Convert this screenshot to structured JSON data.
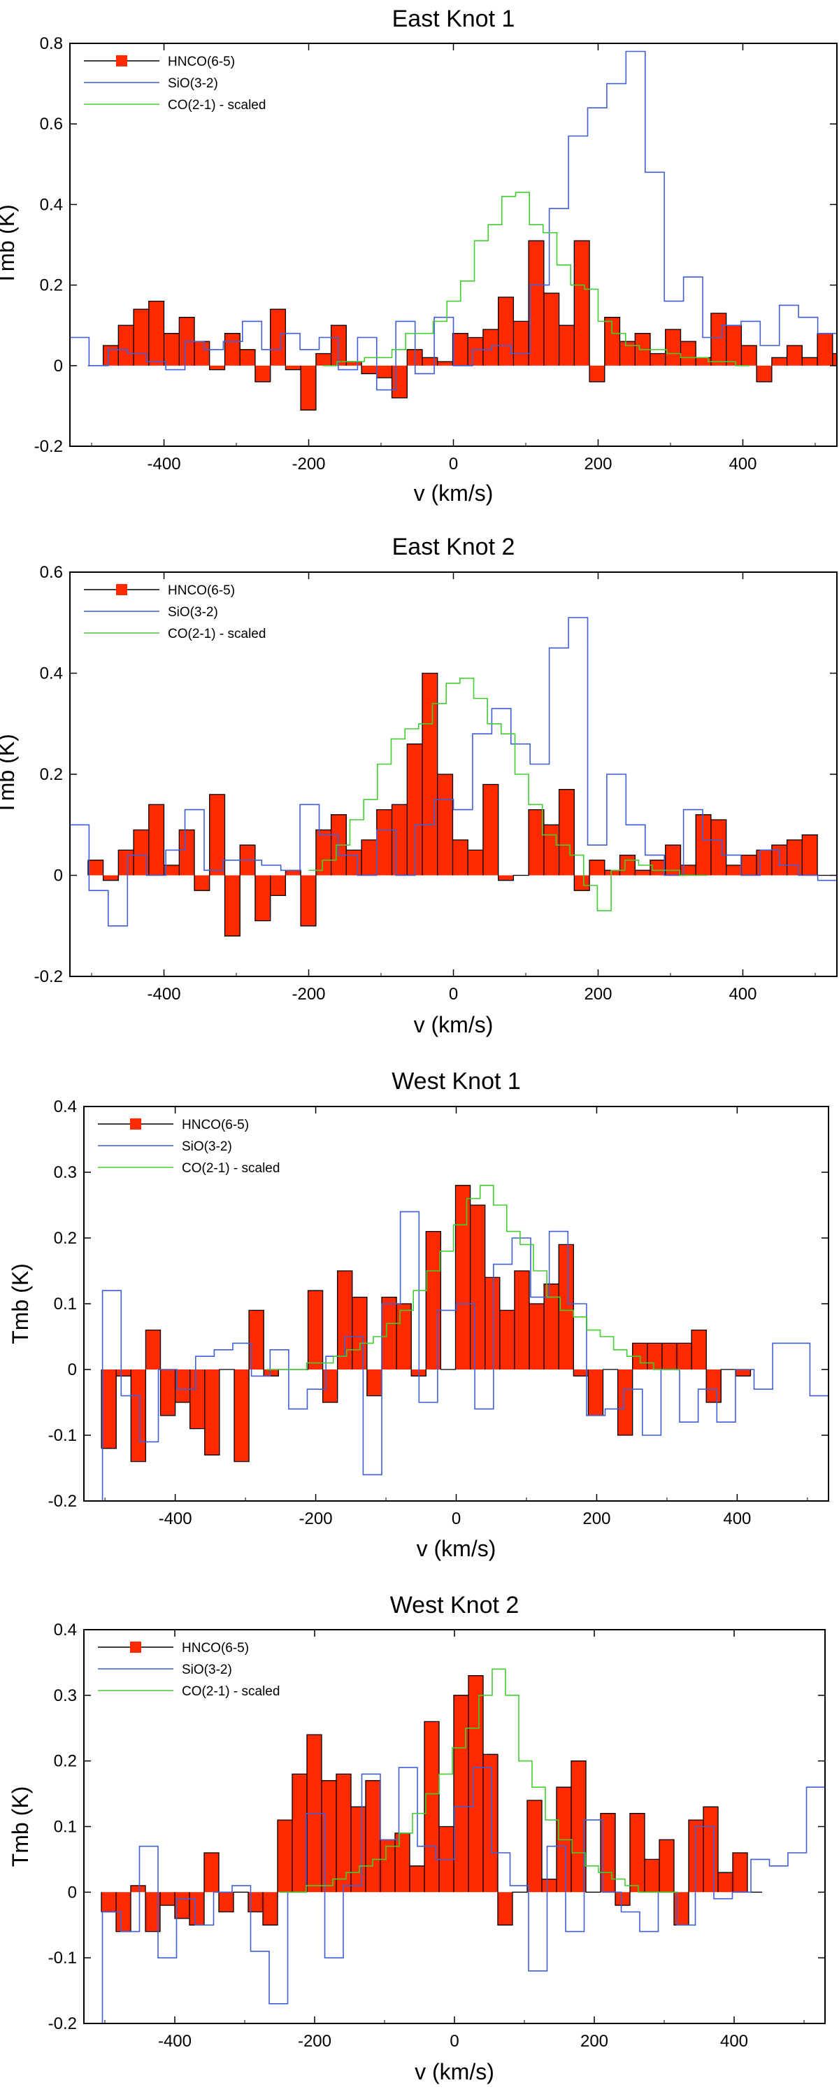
{
  "legend": {
    "hnco": "HNCO(6-5)",
    "sio": "SiO(3-2)",
    "co": "CO(2-1) - scaled"
  },
  "colors": {
    "hnco_fill": "#ff2a00",
    "hnco_line": "#000000",
    "sio": "#3f5fd6",
    "co": "#44cc33",
    "hnco_marker": "#ff2a00"
  },
  "chart_data": [
    {
      "type": "line",
      "title": "East Knot 1",
      "xlabel": "v (km/s)",
      "ylabel": "Tmb (K)",
      "xlim": [
        -530,
        530
      ],
      "ylim": [
        -0.2,
        0.8
      ],
      "xticks": [
        -400,
        -200,
        0,
        200,
        400
      ],
      "yticks": [
        -0.2,
        0,
        0.2,
        0.4,
        0.6,
        0.8
      ],
      "ytick_labels": [
        "-0.2",
        "0",
        "0.2",
        "0.4",
        "0.6",
        "0.8"
      ],
      "legend_position": "top-left",
      "series": [
        {
          "name": "HNCO(6-5)",
          "style": "filled-step",
          "bin_width": 21,
          "x_start": -505,
          "values": [
            0.0,
            0.05,
            0.1,
            0.14,
            0.16,
            0.08,
            0.12,
            0.06,
            -0.01,
            0.08,
            0.04,
            -0.04,
            0.14,
            -0.01,
            -0.11,
            0.03,
            0.1,
            0.01,
            -0.02,
            -0.03,
            -0.08,
            0.04,
            0.02,
            0.01,
            0.08,
            0.07,
            0.09,
            0.17,
            0.11,
            0.31,
            0.18,
            0.1,
            0.31,
            -0.04,
            0.12,
            0.06,
            0.08,
            0.03,
            0.09,
            0.06,
            0.02,
            0.13,
            0.1,
            0.05,
            -0.04,
            0.02,
            0.05,
            0.02,
            0.08,
            0.03,
            0.0,
            0.03,
            0.01,
            0.04,
            0.0,
            0.07,
            0.0
          ]
        },
        {
          "name": "SiO(3-2)",
          "style": "step",
          "bin_width": 26.5,
          "x_start": -530,
          "values": [
            0.07,
            0.0,
            0.04,
            0.03,
            0.01,
            -0.01,
            0.06,
            0.04,
            0.06,
            0.11,
            0.04,
            0.08,
            0.04,
            0.07,
            -0.01,
            0.07,
            -0.06,
            0.11,
            -0.02,
            0.12,
            0.0,
            0.04,
            0.05,
            0.03,
            0.2,
            0.39,
            0.57,
            0.64,
            0.7,
            0.78,
            0.48,
            0.16,
            0.22,
            0.07,
            0.1,
            0.11,
            0.05,
            0.15,
            0.12,
            0.08,
            0.0,
            -0.07,
            0.0,
            0.04,
            0.09,
            0.05,
            0.0,
            -0.08,
            -0.09,
            -0.05,
            -0.03,
            -0.03,
            0.04,
            0.0,
            0.12,
            0.08
          ]
        },
        {
          "name": "CO(2-1) - scaled",
          "style": "step",
          "bin_width": 19,
          "x_start": -180,
          "values": [
            0.0,
            0.01,
            0.01,
            0.02,
            0.02,
            0.04,
            0.08,
            0.08,
            0.11,
            0.16,
            0.21,
            0.31,
            0.35,
            0.42,
            0.43,
            0.35,
            0.33,
            0.25,
            0.2,
            0.19,
            0.11,
            0.08,
            0.05,
            0.04,
            0.04,
            0.03,
            0.02,
            0.02,
            0.01,
            0.01,
            0.0
          ]
        }
      ]
    },
    {
      "type": "line",
      "title": "East Knot 2",
      "xlabel": "v (km/s)",
      "ylabel": "Tmb (K)",
      "xlim": [
        -530,
        530
      ],
      "ylim": [
        -0.2,
        0.6
      ],
      "xticks": [
        -400,
        -200,
        0,
        200,
        400
      ],
      "yticks": [
        -0.2,
        0,
        0.2,
        0.4,
        0.6
      ],
      "ytick_labels": [
        "-0.2",
        "0",
        "0.2",
        "0.4",
        "0.6"
      ],
      "legend_position": "top-left",
      "series": [
        {
          "name": "HNCO(6-5)",
          "style": "filled-step",
          "bin_width": 21,
          "x_start": -505,
          "values": [
            0.03,
            -0.01,
            0.05,
            0.09,
            0.14,
            0.02,
            0.09,
            -0.03,
            0.16,
            -0.12,
            0.06,
            -0.09,
            -0.04,
            0.01,
            -0.1,
            0.09,
            0.12,
            0.05,
            0.07,
            0.13,
            0.14,
            0.26,
            0.4,
            0.2,
            0.07,
            0.05,
            0.18,
            -0.01,
            0.0,
            0.13,
            0.1,
            0.17,
            -0.03,
            0.03,
            0.01,
            0.04,
            0.01,
            0.03,
            0.06,
            0.02,
            0.12,
            0.11,
            0.02,
            0.04,
            0.05,
            0.06,
            0.07,
            0.08,
            0.0
          ]
        },
        {
          "name": "SiO(3-2)",
          "style": "step",
          "bin_width": 26.5,
          "x_start": -530,
          "values": [
            0.1,
            -0.03,
            -0.1,
            0.04,
            0.0,
            0.05,
            0.13,
            0.01,
            0.03,
            0.03,
            0.02,
            0.01,
            0.14,
            0.08,
            0.04,
            0.0,
            0.09,
            0.0,
            0.1,
            0.15,
            0.13,
            0.28,
            0.33,
            0.26,
            0.22,
            0.45,
            0.51,
            0.06,
            0.2,
            0.1,
            0.04,
            0.0,
            0.13,
            0.07,
            0.04,
            0.0,
            0.05,
            0.02,
            0.0,
            -0.01,
            -0.03,
            -0.05,
            -0.08,
            0.05,
            0.11,
            0.01,
            0.02,
            0.06,
            0.05,
            0.08,
            0.02,
            0.07
          ]
        },
        {
          "name": "CO(2-1) - scaled",
          "style": "step",
          "bin_width": 19,
          "x_start": -200,
          "values": [
            0.01,
            0.03,
            0.06,
            0.11,
            0.15,
            0.22,
            0.27,
            0.29,
            0.3,
            0.34,
            0.38,
            0.39,
            0.35,
            0.3,
            0.28,
            0.2,
            0.14,
            0.08,
            0.06,
            0.04,
            -0.02,
            -0.07,
            0.01,
            0.03,
            0.02,
            0.01,
            0.01,
            0.0,
            0.0
          ]
        }
      ]
    },
    {
      "type": "line",
      "title": "West Knot 1",
      "xlabel": "v (km/s)",
      "ylabel": "Tmb (K)",
      "xlim": [
        -530,
        530
      ],
      "ylim": [
        -0.2,
        0.4
      ],
      "xticks": [
        -400,
        -200,
        0,
        200,
        400
      ],
      "yticks": [
        -0.2,
        -0.1,
        0,
        0.1,
        0.2,
        0.3,
        0.4
      ],
      "ytick_labels": [
        "-0.2",
        "-0.1",
        "0",
        "0.1",
        "0.2",
        "0.3",
        "0.4"
      ],
      "legend_position": "top-left",
      "series": [
        {
          "name": "HNCO(6-5)",
          "style": "filled-step",
          "bin_width": 21,
          "x_start": -505,
          "values": [
            -0.12,
            -0.01,
            -0.14,
            0.06,
            -0.07,
            -0.05,
            -0.09,
            -0.13,
            0.0,
            -0.14,
            0.09,
            -0.01,
            0.0,
            0.0,
            0.12,
            -0.05,
            0.15,
            0.11,
            -0.04,
            0.11,
            0.1,
            -0.01,
            0.21,
            0.0,
            0.28,
            0.25,
            0.14,
            0.09,
            0.15,
            0.1,
            0.13,
            0.19,
            -0.01,
            -0.07,
            0.0,
            -0.1,
            0.04,
            0.04,
            0.04,
            0.04,
            0.06,
            -0.05,
            0.0,
            -0.01
          ]
        },
        {
          "name": "SiO(3-2)",
          "style": "step",
          "bin_width": 26.5,
          "x_start": -530,
          "values": [
            -0.2,
            0.12,
            -0.04,
            -0.11,
            0.0,
            -0.03,
            0.02,
            0.03,
            0.04,
            -0.01,
            0.03,
            -0.06,
            -0.03,
            0.02,
            0.05,
            -0.16,
            0.1,
            0.24,
            -0.05,
            0.09,
            0.1,
            -0.06,
            0.16,
            0.2,
            0.11,
            0.21,
            0.1,
            -0.07,
            -0.06,
            -0.03,
            -0.1,
            0.0,
            -0.08,
            -0.03,
            -0.08,
            0.0,
            -0.03,
            0.04,
            0.04,
            -0.04,
            0.03,
            -0.05,
            0.01,
            -0.01,
            0.0,
            -0.04,
            0.19,
            0.15
          ]
        },
        {
          "name": "CO(2-1) - scaled",
          "style": "step",
          "bin_width": 19,
          "x_start": -270,
          "values": [
            0.0,
            0.0,
            0.0,
            0.01,
            0.01,
            0.02,
            0.03,
            0.04,
            0.05,
            0.07,
            0.09,
            0.12,
            0.15,
            0.18,
            0.22,
            0.26,
            0.28,
            0.25,
            0.21,
            0.19,
            0.15,
            0.11,
            0.09,
            0.08,
            0.06,
            0.05,
            0.03,
            0.02,
            0.01,
            0.0,
            0.0
          ]
        }
      ]
    },
    {
      "type": "line",
      "title": "West Knot 2",
      "xlabel": "v (km/s)",
      "ylabel": "Tmb (K)",
      "xlim": [
        -530,
        530
      ],
      "ylim": [
        -0.2,
        0.4
      ],
      "xticks": [
        -400,
        -200,
        0,
        200,
        400
      ],
      "yticks": [
        -0.2,
        -0.1,
        0,
        0.1,
        0.2,
        0.3,
        0.4
      ],
      "ytick_labels": [
        "-0.2",
        "-0.1",
        "0",
        "0.1",
        "0.2",
        "0.3",
        "0.4"
      ],
      "legend_position": "top-left",
      "series": [
        {
          "name": "HNCO(6-5)",
          "style": "filled-step",
          "bin_width": 21,
          "x_start": -505,
          "values": [
            -0.03,
            -0.06,
            0.01,
            -0.06,
            -0.02,
            -0.04,
            -0.05,
            0.06,
            -0.03,
            0.0,
            -0.03,
            -0.05,
            0.11,
            0.18,
            0.24,
            0.17,
            0.18,
            0.13,
            0.17,
            0.08,
            0.09,
            0.04,
            0.26,
            0.1,
            0.3,
            0.33,
            0.21,
            -0.05,
            0.0,
            0.14,
            0.02,
            0.16,
            0.2,
            0.0,
            0.12,
            -0.02,
            0.12,
            0.05,
            0.08,
            -0.05,
            0.11,
            0.13,
            0.03,
            0.06,
            0.0
          ]
        },
        {
          "name": "SiO(3-2)",
          "style": "step",
          "bin_width": 26.5,
          "x_start": -530,
          "values": [
            -0.2,
            -0.03,
            -0.06,
            0.07,
            -0.1,
            -0.01,
            -0.05,
            0.0,
            0.01,
            -0.09,
            -0.17,
            0.0,
            0.12,
            -0.1,
            0.01,
            0.18,
            0.08,
            0.19,
            0.07,
            0.05,
            0.13,
            0.19,
            0.06,
            0.01,
            -0.12,
            0.07,
            -0.06,
            0.11,
            0.0,
            -0.03,
            -0.06,
            0.0,
            -0.05,
            0.1,
            -0.01,
            0.0,
            0.05,
            0.04,
            0.06,
            0.16,
            0.14,
            0.07
          ]
        },
        {
          "name": "CO(2-1) - scaled",
          "style": "step",
          "bin_width": 19,
          "x_start": -250,
          "values": [
            0.0,
            0.0,
            0.01,
            0.01,
            0.02,
            0.03,
            0.04,
            0.05,
            0.07,
            0.09,
            0.12,
            0.15,
            0.18,
            0.22,
            0.25,
            0.3,
            0.34,
            0.3,
            0.2,
            0.16,
            0.11,
            0.08,
            0.06,
            0.04,
            0.03,
            0.02,
            0.01,
            0.0,
            0.0,
            0.0
          ]
        }
      ]
    }
  ]
}
